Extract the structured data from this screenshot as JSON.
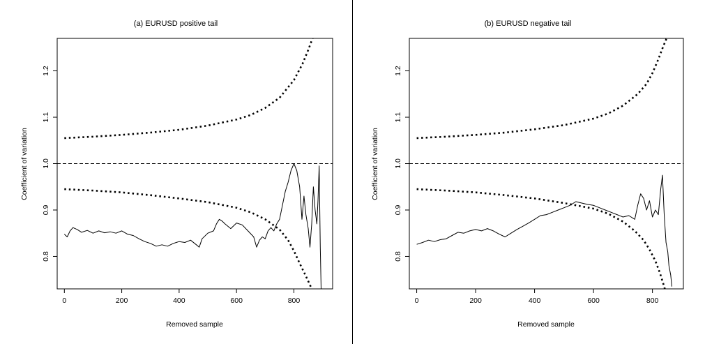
{
  "chart_data": [
    {
      "type": "line",
      "title": "(a) EURUSD positive tail",
      "xlabel": "Removed sample",
      "ylabel": "Coefficient of variation",
      "xlim": [
        -25,
        935
      ],
      "ylim": [
        0.73,
        1.27
      ],
      "x_ticks": [
        0,
        200,
        400,
        600,
        800
      ],
      "y_ticks": [
        0.8,
        0.9,
        1.0,
        1.1,
        1.2
      ],
      "x_tick_labels": [
        "0",
        "200",
        "400",
        "600",
        "800"
      ],
      "y_tick_labels": [
        "0.8",
        "0.9",
        "1.0",
        "1.1",
        "1.2"
      ],
      "reference_line": 1.0,
      "grid": false,
      "series": [
        {
          "style": "solid",
          "points": [
            [
              0,
              0.848
            ],
            [
              10,
              0.842
            ],
            [
              20,
              0.855
            ],
            [
              30,
              0.862
            ],
            [
              45,
              0.858
            ],
            [
              60,
              0.852
            ],
            [
              80,
              0.856
            ],
            [
              100,
              0.85
            ],
            [
              120,
              0.855
            ],
            [
              140,
              0.851
            ],
            [
              160,
              0.853
            ],
            [
              180,
              0.85
            ],
            [
              200,
              0.855
            ],
            [
              220,
              0.848
            ],
            [
              240,
              0.845
            ],
            [
              260,
              0.838
            ],
            [
              280,
              0.832
            ],
            [
              300,
              0.828
            ],
            [
              320,
              0.822
            ],
            [
              340,
              0.825
            ],
            [
              360,
              0.822
            ],
            [
              380,
              0.828
            ],
            [
              400,
              0.832
            ],
            [
              420,
              0.83
            ],
            [
              440,
              0.835
            ],
            [
              460,
              0.825
            ],
            [
              470,
              0.82
            ],
            [
              480,
              0.838
            ],
            [
              500,
              0.85
            ],
            [
              520,
              0.855
            ],
            [
              530,
              0.87
            ],
            [
              540,
              0.88
            ],
            [
              550,
              0.876
            ],
            [
              560,
              0.87
            ],
            [
              580,
              0.86
            ],
            [
              600,
              0.872
            ],
            [
              620,
              0.868
            ],
            [
              640,
              0.855
            ],
            [
              660,
              0.842
            ],
            [
              670,
              0.82
            ],
            [
              680,
              0.835
            ],
            [
              690,
              0.842
            ],
            [
              700,
              0.838
            ],
            [
              710,
              0.855
            ],
            [
              720,
              0.862
            ],
            [
              730,
              0.855
            ],
            [
              740,
              0.87
            ],
            [
              750,
              0.88
            ],
            [
              760,
              0.91
            ],
            [
              770,
              0.94
            ],
            [
              780,
              0.96
            ],
            [
              790,
              0.985
            ],
            [
              800,
              1.0
            ],
            [
              810,
              0.985
            ],
            [
              820,
              0.95
            ],
            [
              828,
              0.88
            ],
            [
              835,
              0.93
            ],
            [
              842,
              0.89
            ],
            [
              850,
              0.86
            ],
            [
              856,
              0.82
            ],
            [
              862,
              0.87
            ],
            [
              868,
              0.95
            ],
            [
              874,
              0.9
            ],
            [
              880,
              0.87
            ],
            [
              884,
              0.92
            ],
            [
              888,
              0.995
            ],
            [
              892,
              0.82
            ],
            [
              895,
              0.73
            ]
          ]
        },
        {
          "style": "dotted",
          "points": [
            [
              0,
              1.055
            ],
            [
              100,
              1.058
            ],
            [
              200,
              1.062
            ],
            [
              300,
              1.067
            ],
            [
              400,
              1.073
            ],
            [
              500,
              1.082
            ],
            [
              600,
              1.095
            ],
            [
              650,
              1.105
            ],
            [
              700,
              1.12
            ],
            [
              750,
              1.142
            ],
            [
              800,
              1.18
            ],
            [
              830,
              1.215
            ],
            [
              850,
              1.245
            ],
            [
              865,
              1.27
            ]
          ]
        },
        {
          "style": "dotted",
          "points": [
            [
              0,
              0.945
            ],
            [
              100,
              0.942
            ],
            [
              200,
              0.938
            ],
            [
              300,
              0.932
            ],
            [
              400,
              0.925
            ],
            [
              500,
              0.917
            ],
            [
              600,
              0.905
            ],
            [
              650,
              0.895
            ],
            [
              700,
              0.88
            ],
            [
              750,
              0.858
            ],
            [
              780,
              0.835
            ],
            [
              800,
              0.812
            ],
            [
              820,
              0.785
            ],
            [
              840,
              0.76
            ],
            [
              855,
              0.74
            ],
            [
              862,
              0.73
            ]
          ]
        }
      ]
    },
    {
      "type": "line",
      "title": "(b) EURUSD negative tail",
      "xlabel": "Removed sample",
      "ylabel": "Coefficient of variation",
      "xlim": [
        -25,
        905
      ],
      "ylim": [
        0.73,
        1.27
      ],
      "x_ticks": [
        0,
        200,
        400,
        600,
        800
      ],
      "y_ticks": [
        0.8,
        0.9,
        1.0,
        1.1,
        1.2
      ],
      "x_tick_labels": [
        "0",
        "200",
        "400",
        "600",
        "800"
      ],
      "y_tick_labels": [
        "0.8",
        "0.9",
        "1.0",
        "1.1",
        "1.2"
      ],
      "reference_line": 1.0,
      "grid": false,
      "series": [
        {
          "style": "solid",
          "points": [
            [
              0,
              0.826
            ],
            [
              20,
              0.83
            ],
            [
              40,
              0.835
            ],
            [
              60,
              0.832
            ],
            [
              80,
              0.836
            ],
            [
              100,
              0.838
            ],
            [
              120,
              0.845
            ],
            [
              140,
              0.852
            ],
            [
              160,
              0.85
            ],
            [
              180,
              0.855
            ],
            [
              200,
              0.858
            ],
            [
              220,
              0.855
            ],
            [
              240,
              0.86
            ],
            [
              260,
              0.855
            ],
            [
              280,
              0.848
            ],
            [
              300,
              0.842
            ],
            [
              320,
              0.85
            ],
            [
              340,
              0.858
            ],
            [
              360,
              0.865
            ],
            [
              380,
              0.872
            ],
            [
              400,
              0.88
            ],
            [
              420,
              0.888
            ],
            [
              440,
              0.89
            ],
            [
              460,
              0.895
            ],
            [
              480,
              0.9
            ],
            [
              500,
              0.905
            ],
            [
              520,
              0.91
            ],
            [
              540,
              0.918
            ],
            [
              560,
              0.915
            ],
            [
              580,
              0.912
            ],
            [
              600,
              0.91
            ],
            [
              620,
              0.905
            ],
            [
              640,
              0.9
            ],
            [
              660,
              0.895
            ],
            [
              680,
              0.89
            ],
            [
              700,
              0.885
            ],
            [
              720,
              0.888
            ],
            [
              740,
              0.88
            ],
            [
              750,
              0.91
            ],
            [
              760,
              0.935
            ],
            [
              770,
              0.925
            ],
            [
              780,
              0.9
            ],
            [
              790,
              0.92
            ],
            [
              800,
              0.885
            ],
            [
              810,
              0.9
            ],
            [
              820,
              0.89
            ],
            [
              828,
              0.945
            ],
            [
              834,
              0.975
            ],
            [
              840,
              0.89
            ],
            [
              846,
              0.83
            ],
            [
              852,
              0.81
            ],
            [
              856,
              0.78
            ],
            [
              862,
              0.76
            ],
            [
              866,
              0.735
            ]
          ]
        },
        {
          "style": "dotted",
          "points": [
            [
              0,
              1.055
            ],
            [
              100,
              1.058
            ],
            [
              200,
              1.062
            ],
            [
              300,
              1.067
            ],
            [
              400,
              1.074
            ],
            [
              500,
              1.083
            ],
            [
              600,
              1.097
            ],
            [
              650,
              1.108
            ],
            [
              700,
              1.125
            ],
            [
              750,
              1.15
            ],
            [
              780,
              1.172
            ],
            [
              800,
              1.195
            ],
            [
              820,
              1.225
            ],
            [
              835,
              1.25
            ],
            [
              848,
              1.27
            ]
          ]
        },
        {
          "style": "dotted",
          "points": [
            [
              0,
              0.945
            ],
            [
              100,
              0.942
            ],
            [
              200,
              0.938
            ],
            [
              300,
              0.932
            ],
            [
              400,
              0.925
            ],
            [
              500,
              0.915
            ],
            [
              600,
              0.903
            ],
            [
              650,
              0.892
            ],
            [
              700,
              0.875
            ],
            [
              740,
              0.855
            ],
            [
              770,
              0.835
            ],
            [
              790,
              0.815
            ],
            [
              810,
              0.79
            ],
            [
              825,
              0.765
            ],
            [
              835,
              0.745
            ],
            [
              842,
              0.73
            ]
          ]
        }
      ]
    }
  ]
}
